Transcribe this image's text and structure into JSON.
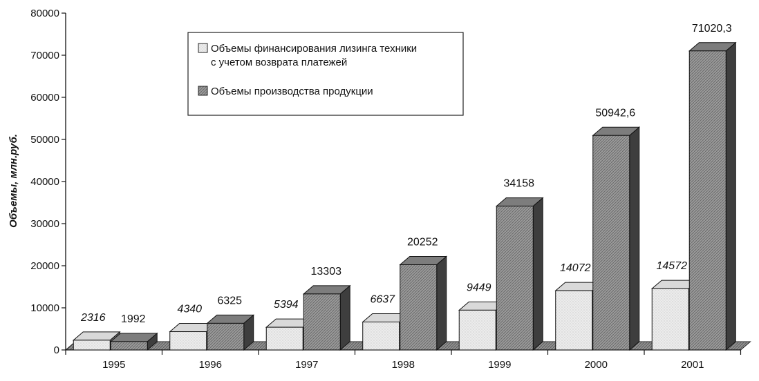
{
  "chart_data": {
    "type": "bar",
    "categories": [
      "1995",
      "1996",
      "1997",
      "1998",
      "1999",
      "2000",
      "2001"
    ],
    "series": [
      {
        "name": "Объемы финансирования лизинга техники с учетом возврата платежей",
        "legend_lines": [
          "Объемы финансирования лизинга техники",
          "с учетом возврата платежей"
        ],
        "values": [
          2316,
          4340,
          5394,
          6637,
          9449,
          14072,
          14572
        ],
        "labels": [
          "2316",
          "4340",
          "5394",
          "6637",
          "9449",
          "14072",
          "14572"
        ],
        "label_style": "italic",
        "color": "#e6e6e6"
      },
      {
        "name": "Объемы производства продукции",
        "legend_lines": [
          "Объемы производства продукции"
        ],
        "values": [
          1992,
          6325,
          13303,
          20252,
          34158,
          50942.6,
          71020.3
        ],
        "labels": [
          "1992",
          "6325",
          "13303",
          "20252",
          "34158",
          "50942,6",
          "71020,3"
        ],
        "label_style": "normal",
        "color": "#8c8c8c"
      }
    ],
    "title": "",
    "xlabel": "",
    "ylabel": "Объемы, млн.руб.",
    "ylim": [
      0,
      80000
    ],
    "yticks": [
      "0",
      "10000",
      "20000",
      "30000",
      "40000",
      "50000",
      "60000",
      "70000",
      "80000"
    ],
    "grid": false,
    "legend_position": "top-center",
    "three_d": true
  }
}
